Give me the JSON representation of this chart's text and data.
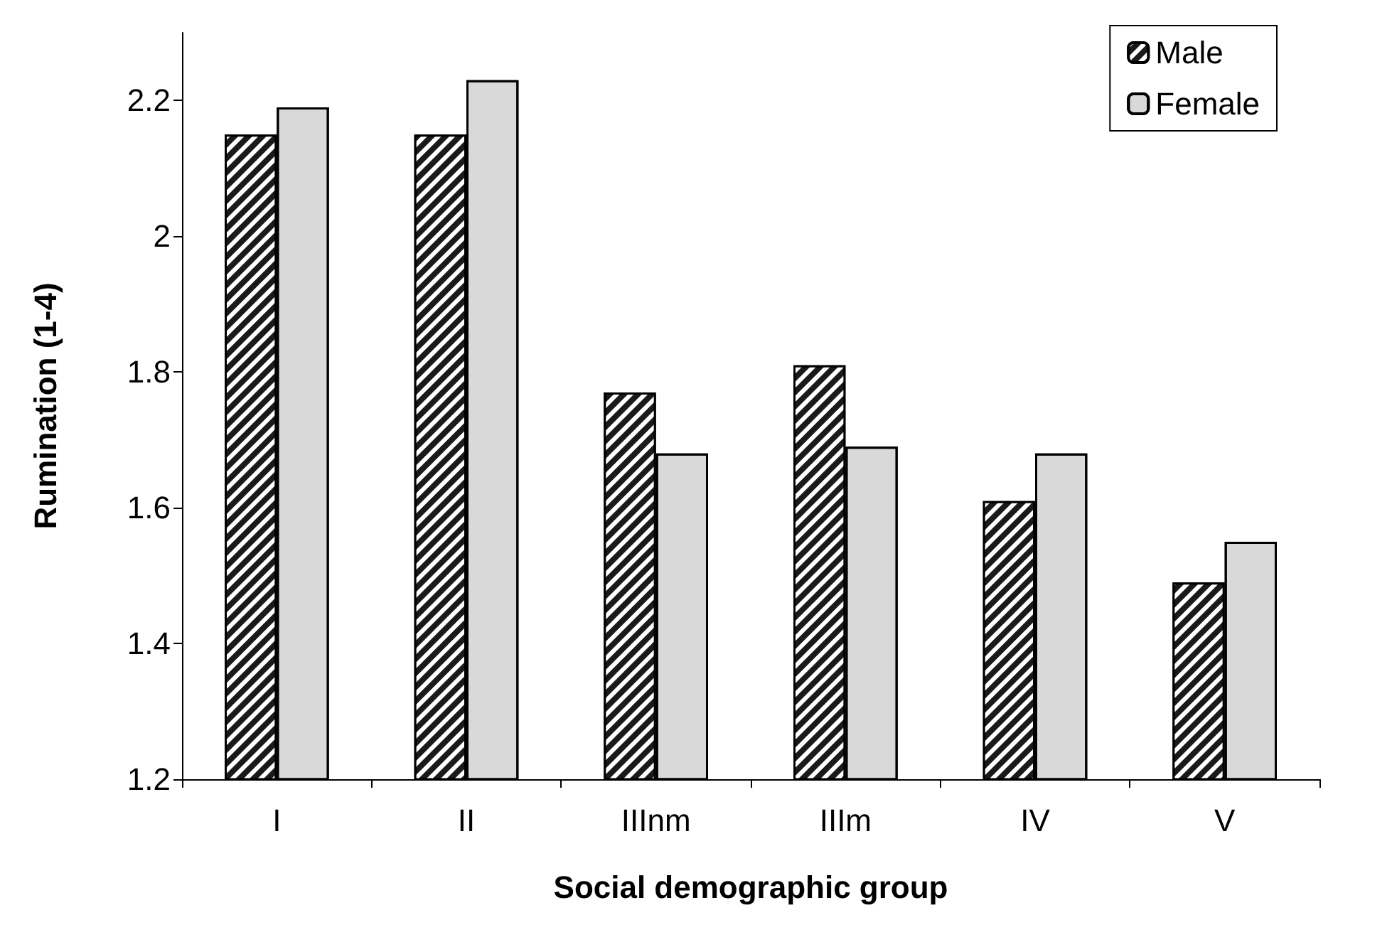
{
  "chart_data": {
    "type": "bar",
    "xlabel": "Social demographic group",
    "ylabel": "Rumination (1-4)",
    "categories": [
      "I",
      "II",
      "IIInm",
      "IIIm",
      "IV",
      "V"
    ],
    "series": [
      {
        "name": "Male",
        "color": "#1a1a1a",
        "values": [
          2.15,
          2.15,
          1.77,
          1.81,
          1.61,
          1.49
        ]
      },
      {
        "name": "Female",
        "color": "#d9d9d9",
        "values": [
          2.19,
          2.23,
          1.68,
          1.69,
          1.68,
          1.55
        ]
      }
    ],
    "ylim": [
      1.2,
      2.3
    ],
    "yticks": [
      1.2,
      1.4,
      1.6,
      1.8,
      2,
      2.2
    ],
    "grid": false,
    "legend": "top right"
  }
}
